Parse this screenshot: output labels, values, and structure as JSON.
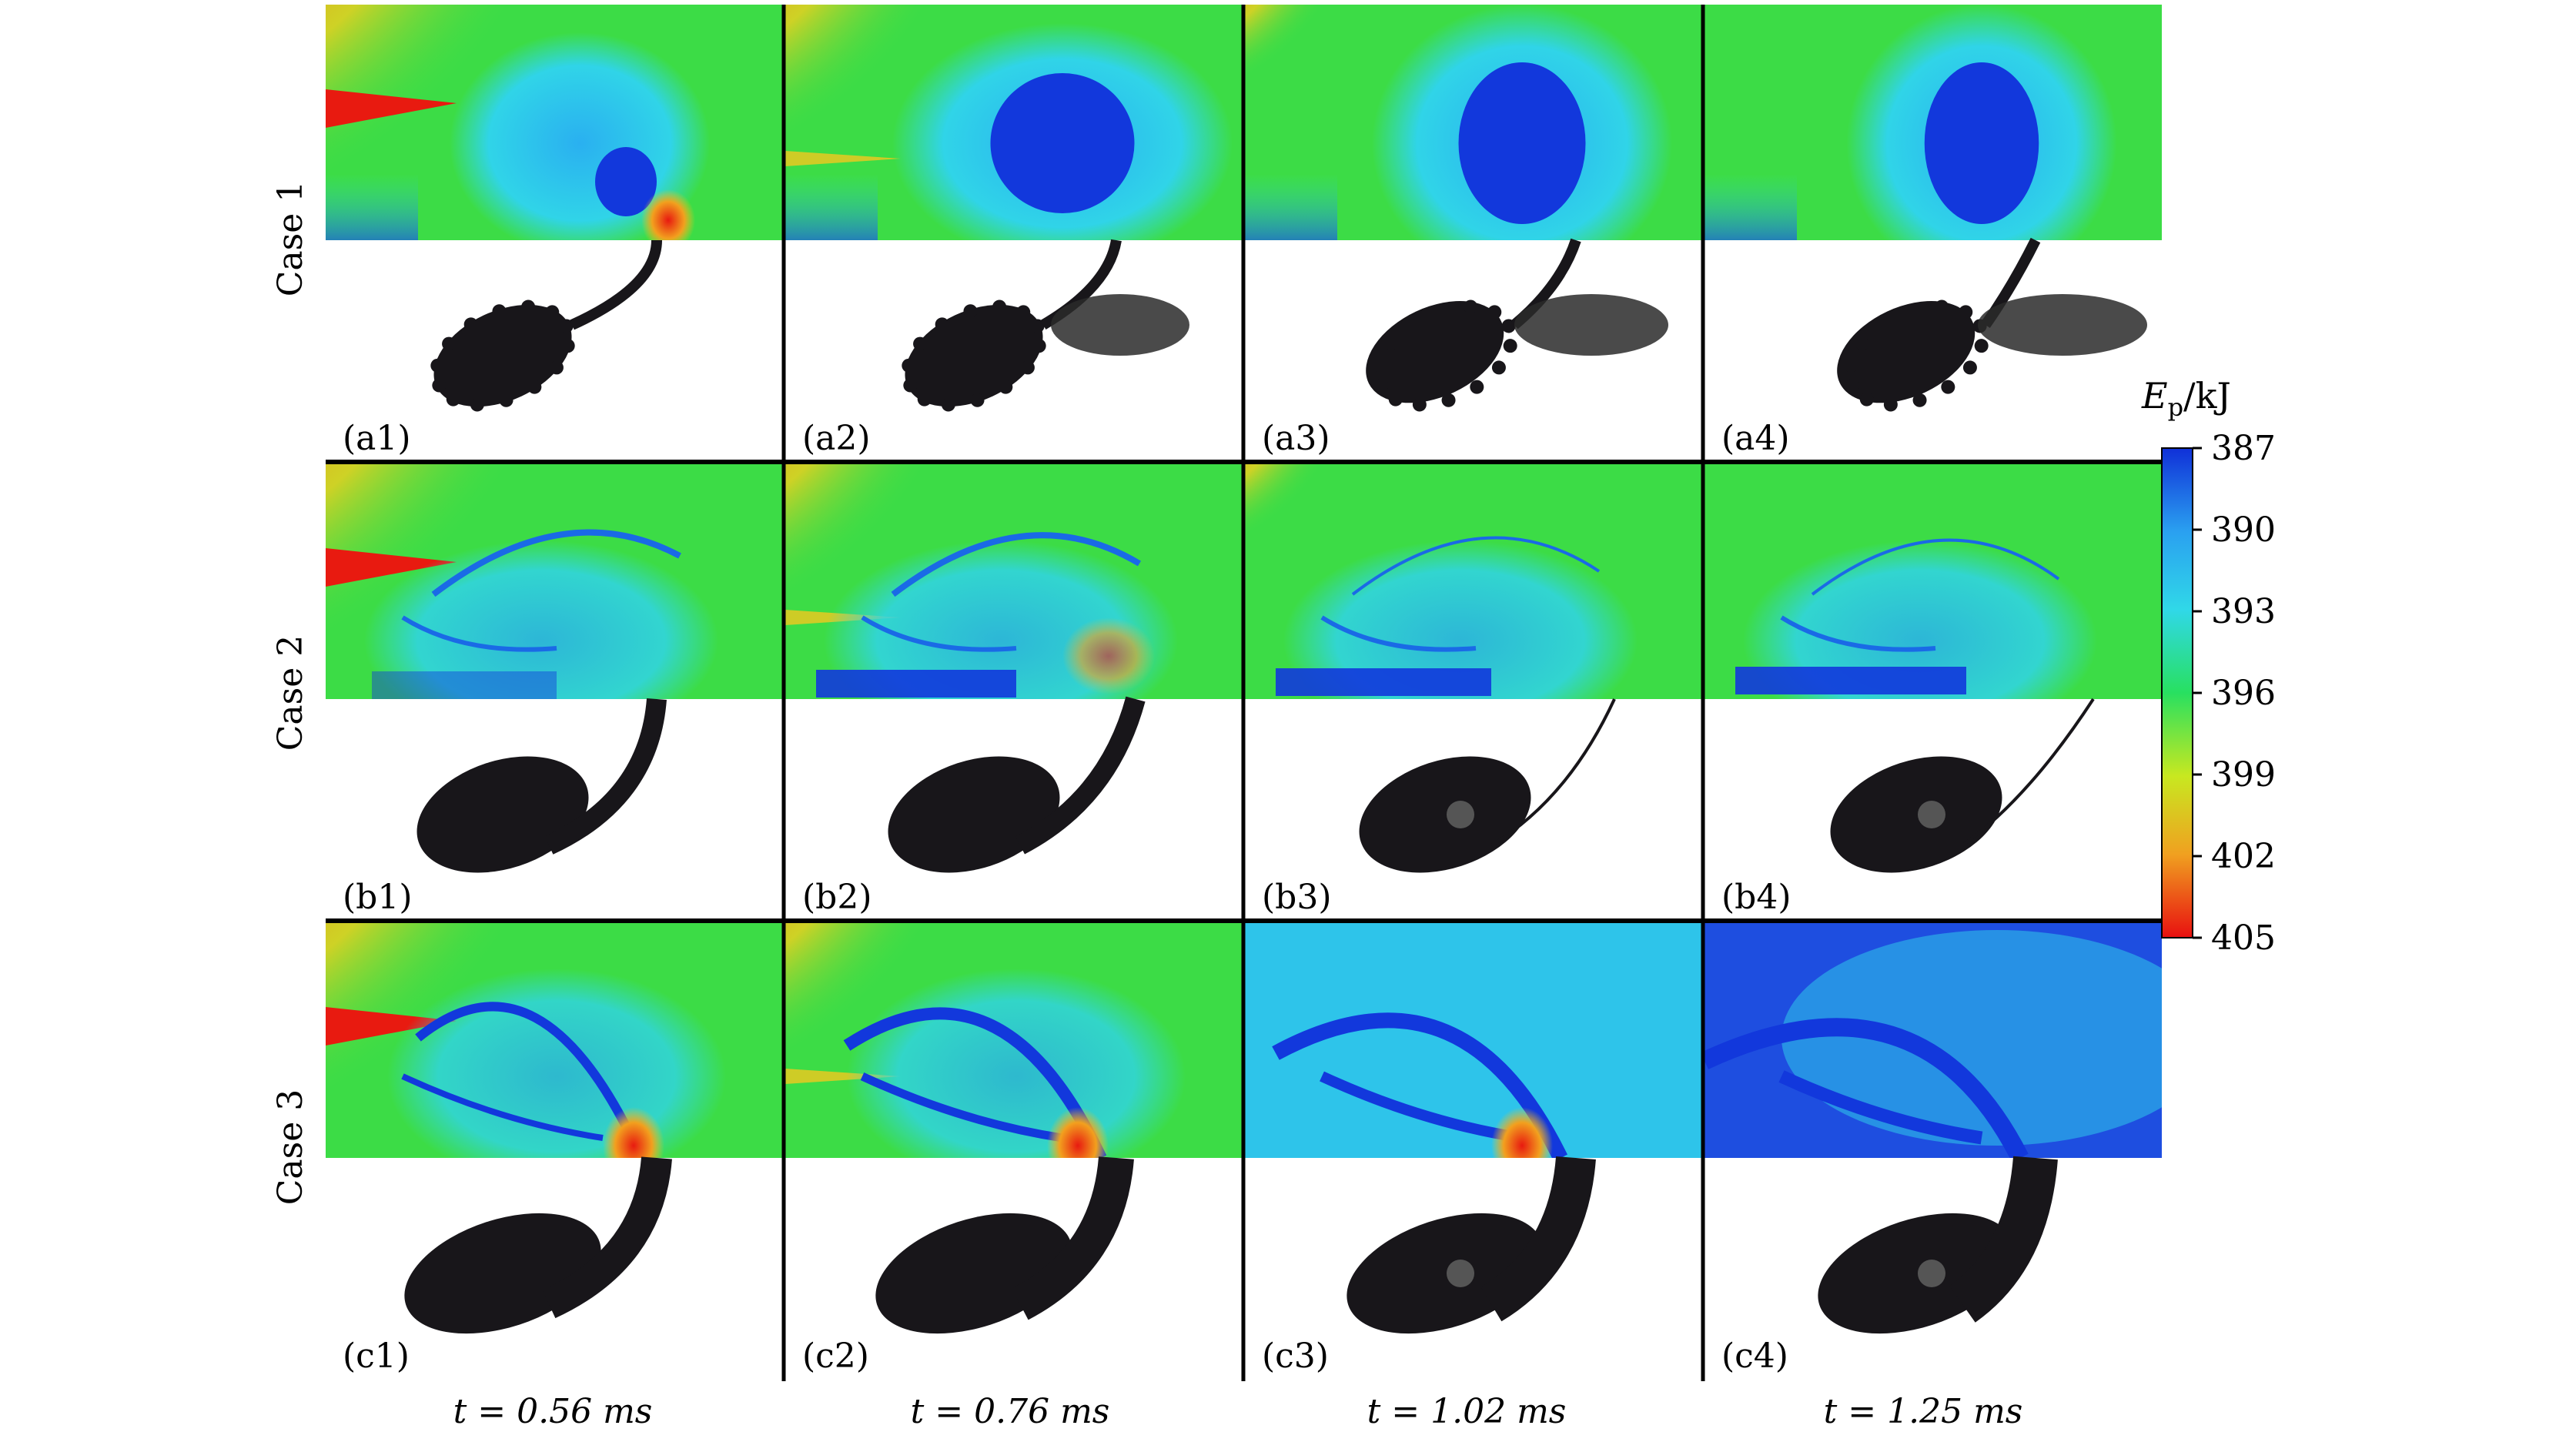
{
  "figure": {
    "cases": [
      {
        "label": "Case 1",
        "row_key": "a",
        "shape": "bubbly"
      },
      {
        "label": "Case 2",
        "row_key": "b",
        "shape": "smooth"
      },
      {
        "label": "Case 3",
        "row_key": "c",
        "shape": "smooth-long"
      }
    ],
    "panel_labels": [
      [
        "(a1)",
        "(a2)",
        "(a3)",
        "(a4)"
      ],
      [
        "(b1)",
        "(b2)",
        "(b3)",
        "(b4)"
      ],
      [
        "(c1)",
        "(c2)",
        "(c3)",
        "(c4)"
      ]
    ],
    "time_labels": [
      "t = 0.56 ms",
      "t = 0.76 ms",
      "t = 1.02 ms",
      "t = 1.25 ms"
    ],
    "colorbar": {
      "title_symbol": "E",
      "title_subscript": "p",
      "title_unit": "/kJ",
      "ticks": [
        "387",
        "390",
        "393",
        "396",
        "399",
        "402",
        "405"
      ],
      "min": 387,
      "max": 405,
      "colors": [
        "#1030d8",
        "#2aa0f0",
        "#30d8e8",
        "#28e060",
        "#c8e820",
        "#f0a020",
        "#e81010"
      ]
    },
    "field_colors": {
      "background": "#3cdc46",
      "cool": "#28c8e6",
      "cold": "#1238dc",
      "hot": "#e81a10",
      "warm": "#f2c81e",
      "jet": "#18161a"
    }
  }
}
